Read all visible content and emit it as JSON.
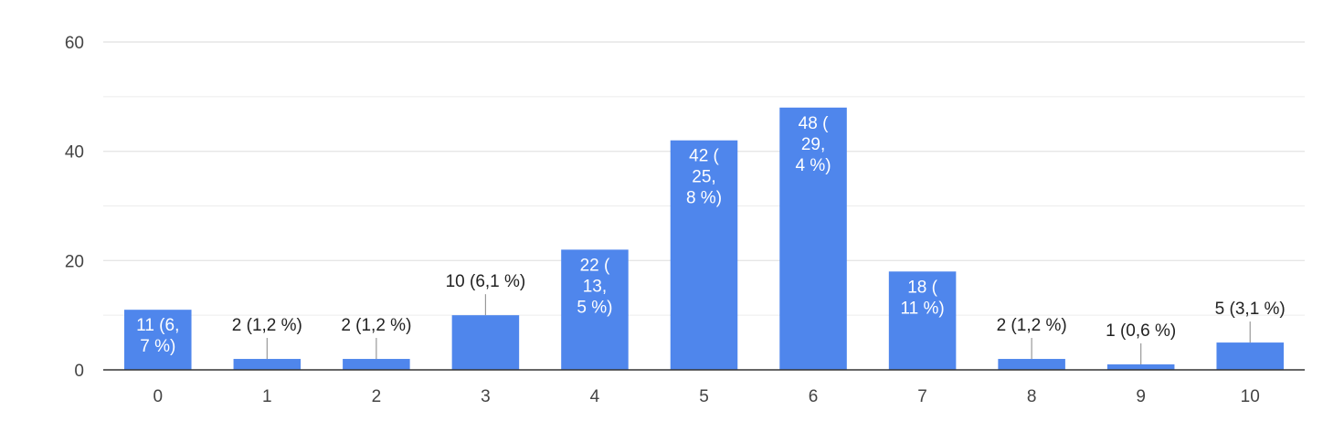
{
  "chart_data": {
    "type": "bar",
    "title": "",
    "xlabel": "",
    "ylabel": "",
    "categories": [
      "0",
      "1",
      "2",
      "3",
      "4",
      "5",
      "6",
      "7",
      "8",
      "9",
      "10"
    ],
    "values": [
      11,
      2,
      2,
      10,
      22,
      42,
      48,
      18,
      2,
      1,
      5
    ],
    "data_labels": [
      "11 (6,7 %)",
      "2 (1,2 %)",
      "2 (1,2 %)",
      "10 (6,1 %)",
      "22 (13,5 %)",
      "42 (25,8 %)",
      "48 (29,4 %)",
      "18 (11 %)",
      "2 (1,2 %)",
      "1 (0,6 %)",
      "5 (3,1 %)"
    ],
    "data_label_lines": [
      [
        "11 (6,",
        "7 %)"
      ],
      [
        "2 (1,2 %)"
      ],
      [
        "2 (1,2 %)"
      ],
      [
        "10 (6,1 %)"
      ],
      [
        "22 (",
        "13,",
        "5 %)"
      ],
      [
        "42 (",
        "25,",
        "8 %)"
      ],
      [
        "48 (",
        "29,",
        "4 %)"
      ],
      [
        "18 (",
        "11 %)"
      ],
      [
        "2 (1,2 %)"
      ],
      [
        "1 (0,6 %)"
      ],
      [
        "5 (3,1 %)"
      ]
    ],
    "label_inside": [
      true,
      false,
      false,
      false,
      true,
      true,
      true,
      true,
      false,
      false,
      false
    ],
    "y_ticks": [
      0,
      20,
      40,
      60
    ],
    "ylim": [
      0,
      60
    ],
    "grid": true,
    "legend": "none",
    "bar_color": "#4f86ec",
    "gridline_color": "#ececec",
    "axis_color": "#333333",
    "inside_label_color": "#ffffff",
    "outside_label_color": "#222222",
    "leader_line_color": "#999999"
  }
}
